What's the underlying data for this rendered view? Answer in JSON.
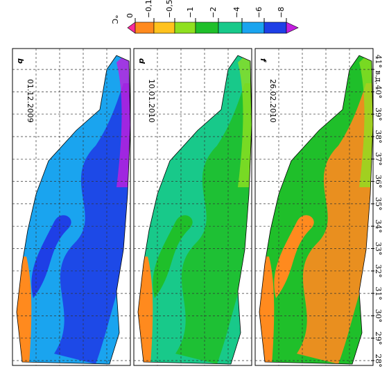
{
  "colorbar": {
    "unit": "°C",
    "labels": [
      "0",
      "−0,1",
      "−0,5",
      "−1",
      "−2",
      "−4",
      "−6",
      "−8"
    ]
  },
  "panels": [
    {
      "letter": "b",
      "date": "01.12.2009"
    },
    {
      "letter": "d",
      "date": "10.01.2010"
    },
    {
      "letter": "f",
      "date": "26.02.2010"
    }
  ],
  "longitudes": [
    "28°",
    "29°",
    "30°",
    "31°",
    "32°",
    "33°",
    "34°",
    "35°",
    "36°",
    "37°",
    "38°",
    "39°",
    "40°",
    "41° в.д."
  ]
}
